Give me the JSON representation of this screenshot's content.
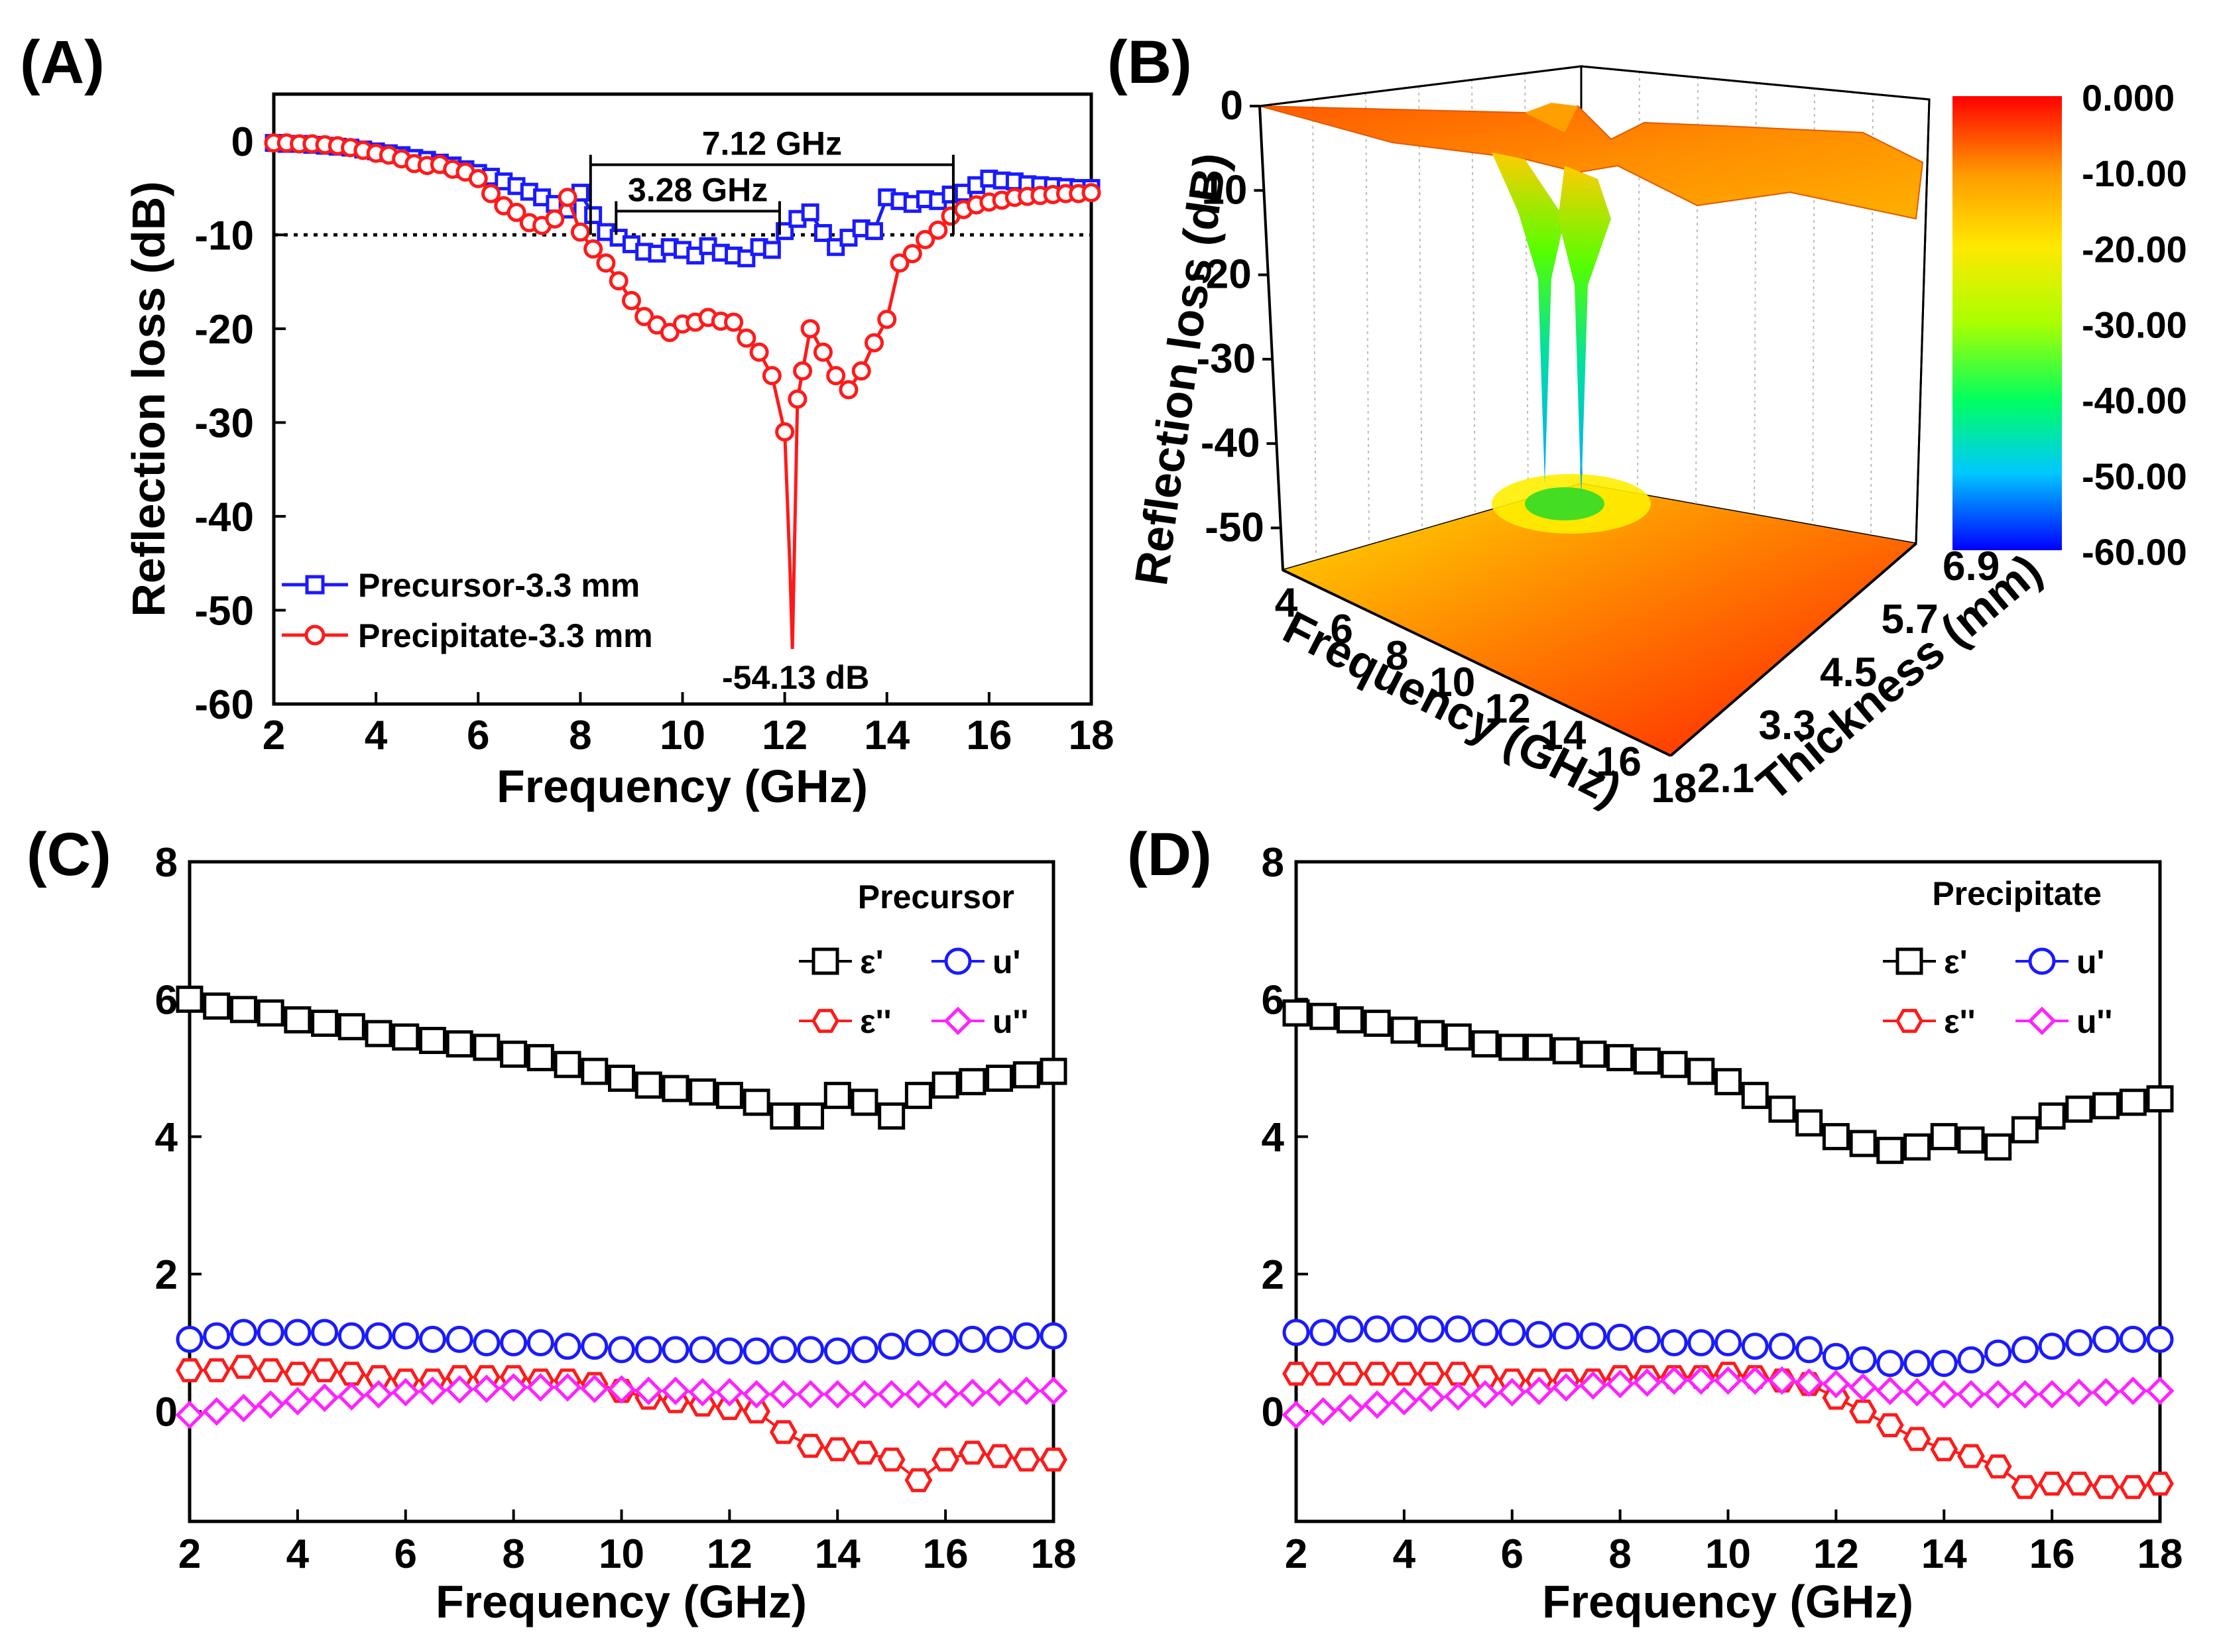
{
  "panels": {
    "A": {
      "label": "(A)"
    },
    "B": {
      "label": "(B)"
    },
    "C": {
      "label": "(C)"
    },
    "D": {
      "label": "(D)"
    }
  },
  "chart_data": [
    {
      "id": "A",
      "type": "line",
      "title": "",
      "xlabel": "Frequency (GHz)",
      "ylabel": "Reflection loss (dB)",
      "xlim": [
        2,
        18
      ],
      "ylim": [
        -60,
        5
      ],
      "xticks": [
        "2",
        "4",
        "6",
        "8",
        "10",
        "12",
        "14",
        "16",
        "18"
      ],
      "yticks": [
        "0",
        "-10",
        "-20",
        "-30",
        "-40",
        "-50",
        "-60"
      ],
      "reference_line": {
        "y": -10,
        "style": "dotted"
      },
      "series": [
        {
          "name": "Precursor-3.3 mm",
          "color": "#1a1aff",
          "marker": "square",
          "x": [
            2,
            2.25,
            2.5,
            2.75,
            3,
            3.25,
            3.5,
            3.75,
            4,
            4.25,
            4.5,
            4.75,
            5,
            5.25,
            5.5,
            5.75,
            6,
            6.25,
            6.5,
            6.75,
            7,
            7.25,
            7.5,
            7.75,
            8,
            8.25,
            8.5,
            8.75,
            9,
            9.25,
            9.5,
            9.75,
            10,
            10.25,
            10.5,
            10.75,
            11,
            11.25,
            11.5,
            11.75,
            12,
            12.25,
            12.5,
            12.75,
            13,
            13.25,
            13.5,
            13.75,
            14,
            14.25,
            14.5,
            14.75,
            15,
            15.25,
            15.5,
            15.75,
            16,
            16.25,
            16.5,
            16.75,
            17,
            17.25,
            17.5,
            17.75,
            18
          ],
          "values": [
            -0.2,
            -0.3,
            -0.3,
            -0.4,
            -0.5,
            -0.6,
            -0.7,
            -0.9,
            -1.1,
            -1.3,
            -1.5,
            -1.8,
            -2.0,
            -2.3,
            -2.6,
            -3.0,
            -3.4,
            -3.8,
            -4.3,
            -4.8,
            -5.4,
            -6.0,
            -6.7,
            -7.3,
            -5.5,
            -7.9,
            -9.7,
            -10.3,
            -11.0,
            -11.8,
            -12.0,
            -11.3,
            -11.6,
            -12.2,
            -11.2,
            -11.9,
            -12.2,
            -12.5,
            -11.3,
            -11.6,
            -9.6,
            -8.3,
            -7.6,
            -9.8,
            -11.3,
            -10.3,
            -9.3,
            -9.6,
            -6.0,
            -6.4,
            -6.7,
            -6.2,
            -6.4,
            -5.7,
            -5.5,
            -4.7,
            -4.0,
            -4.2,
            -4.3,
            -4.6,
            -4.7,
            -4.8,
            -4.9,
            -5.0,
            -5.0
          ]
        },
        {
          "name": "Precipitate-3.3 mm",
          "color": "#ff1a1a",
          "marker": "circle",
          "x": [
            2,
            2.25,
            2.5,
            2.75,
            3,
            3.25,
            3.5,
            3.75,
            4,
            4.25,
            4.5,
            4.75,
            5,
            5.25,
            5.5,
            5.75,
            6,
            6.25,
            6.5,
            6.75,
            7,
            7.25,
            7.5,
            7.75,
            8,
            8.25,
            8.5,
            8.75,
            9,
            9.25,
            9.5,
            9.75,
            10,
            10.25,
            10.5,
            10.75,
            11,
            11.25,
            11.5,
            11.75,
            12,
            12.1,
            12.15,
            12.25,
            12.35,
            12.5,
            12.75,
            13,
            13.25,
            13.5,
            13.75,
            14,
            14.25,
            14.5,
            14.75,
            15,
            15.25,
            15.5,
            15.75,
            16,
            16.25,
            16.5,
            16.75,
            17,
            17.25,
            17.5,
            17.75,
            18
          ],
          "values": [
            -0.2,
            -0.2,
            -0.3,
            -0.3,
            -0.4,
            -0.5,
            -0.7,
            -1.0,
            -1.3,
            -1.5,
            -1.9,
            -2.4,
            -2.6,
            -2.5,
            -3.0,
            -3.3,
            -4.0,
            -5.6,
            -6.9,
            -7.6,
            -8.7,
            -9.0,
            -8.3,
            -6.0,
            -9.7,
            -11.5,
            -13.0,
            -14.9,
            -17.0,
            -18.7,
            -19.6,
            -20.4,
            -19.5,
            -19.3,
            -18.8,
            -19.2,
            -19.3,
            -21.0,
            -22.5,
            -25.0,
            -31.0,
            -45.0,
            -54.13,
            -27.5,
            -24.5,
            -20.0,
            -22.5,
            -25.0,
            -26.5,
            -24.5,
            -21.5,
            -19.0,
            -13.0,
            -12.0,
            -10.5,
            -9.5,
            -8.0,
            -7.3,
            -6.8,
            -6.5,
            -6.3,
            -6.0,
            -5.9,
            -5.8,
            -5.7,
            -5.6,
            -5.6,
            -5.5
          ]
        }
      ],
      "annotations": [
        {
          "text": "7.12 GHz",
          "x_start": 8.2,
          "x_end": 15.3,
          "y": 0.3
        },
        {
          "text": "3.28 GHz",
          "x_start": 8.7,
          "x_end": 11.9,
          "y": -5
        },
        {
          "text": "-54.13 dB",
          "x": 12.15,
          "y": -54.13
        }
      ],
      "legend": [
        "Precursor-3.3 mm",
        "Precipitate-3.3 mm"
      ],
      "legend_position": "bottom-left"
    },
    {
      "id": "B",
      "type": "surface3d",
      "title": "",
      "xlabel": "Frequency (GHz)",
      "ylabel": "Thickness (mm)",
      "zlabel": "Reflection loss (dB)",
      "xticks": [
        "4",
        "6",
        "8",
        "10",
        "12",
        "14",
        "16",
        "18"
      ],
      "yticks": [
        "2.1",
        "3.3",
        "4.5",
        "5.7",
        "6.9"
      ],
      "zticks": [
        "0",
        "-10",
        "-20",
        "-30",
        "-40",
        "-50"
      ],
      "zlim": [
        -55,
        0
      ],
      "minimum_peaks": [
        {
          "frequency": 11.5,
          "thickness": 3.3,
          "value": -47
        },
        {
          "frequency": 12.2,
          "thickness": 3.3,
          "value": -52
        }
      ],
      "colorbar": {
        "ticks": [
          "0.000",
          "-10.00",
          "-20.00",
          "-30.00",
          "-40.00",
          "-50.00",
          "-60.00"
        ],
        "range": [
          -60,
          0
        ],
        "colors": [
          "#0000ff",
          "#00c8ff",
          "#00ff60",
          "#aaff00",
          "#ffe800",
          "#ff9900",
          "#ff0000"
        ]
      }
    },
    {
      "id": "C",
      "type": "line",
      "title": "Precursor",
      "xlabel": "Frequency (GHz)",
      "ylabel": "",
      "xlim": [
        2,
        18
      ],
      "ylim": [
        -1.6,
        8
      ],
      "xticks": [
        "2",
        "4",
        "6",
        "8",
        "10",
        "12",
        "14",
        "16",
        "18"
      ],
      "yticks": [
        "0",
        "2",
        "4",
        "6",
        "8"
      ],
      "x": [
        2,
        2.5,
        3,
        3.5,
        4,
        4.5,
        5,
        5.5,
        6,
        6.5,
        7,
        7.5,
        8,
        8.5,
        9,
        9.5,
        10,
        10.5,
        11,
        11.5,
        12,
        12.5,
        13,
        13.5,
        14,
        14.5,
        15,
        15.5,
        16,
        16.5,
        17,
        17.5,
        18
      ],
      "series": [
        {
          "name": "ε'",
          "color": "#000000",
          "marker": "square",
          "values": [
            6.0,
            5.9,
            5.85,
            5.8,
            5.7,
            5.65,
            5.6,
            5.5,
            5.45,
            5.4,
            5.35,
            5.3,
            5.2,
            5.15,
            5.05,
            4.95,
            4.85,
            4.75,
            4.7,
            4.65,
            4.6,
            4.5,
            4.3,
            4.3,
            4.6,
            4.5,
            4.3,
            4.6,
            4.75,
            4.8,
            4.85,
            4.9,
            4.95
          ]
        },
        {
          "name": "u'",
          "color": "#1a1aff",
          "marker": "circle",
          "values": [
            1.05,
            1.1,
            1.15,
            1.15,
            1.15,
            1.15,
            1.1,
            1.1,
            1.1,
            1.05,
            1.05,
            1.0,
            1.0,
            1.0,
            0.95,
            0.95,
            0.9,
            0.9,
            0.9,
            0.9,
            0.88,
            0.88,
            0.9,
            0.9,
            0.88,
            0.9,
            0.95,
            1.0,
            1.0,
            1.05,
            1.05,
            1.1,
            1.1
          ]
        },
        {
          "name": "ε''",
          "color": "#ff1a1a",
          "marker": "hexagon",
          "values": [
            0.6,
            0.6,
            0.65,
            0.6,
            0.55,
            0.6,
            0.55,
            0.5,
            0.45,
            0.45,
            0.5,
            0.5,
            0.5,
            0.45,
            0.45,
            0.4,
            0.3,
            0.2,
            0.15,
            0.1,
            0.05,
            0.0,
            -0.3,
            -0.5,
            -0.55,
            -0.6,
            -0.7,
            -1.0,
            -0.7,
            -0.6,
            -0.65,
            -0.7,
            -0.7
          ]
        },
        {
          "name": "u''",
          "color": "#ff22ff",
          "marker": "diamond",
          "values": [
            -0.05,
            0.0,
            0.05,
            0.1,
            0.15,
            0.2,
            0.22,
            0.25,
            0.28,
            0.3,
            0.32,
            0.33,
            0.35,
            0.35,
            0.35,
            0.33,
            0.32,
            0.3,
            0.3,
            0.28,
            0.28,
            0.25,
            0.25,
            0.25,
            0.25,
            0.25,
            0.25,
            0.25,
            0.25,
            0.27,
            0.28,
            0.3,
            0.3
          ]
        }
      ],
      "legend": [
        "ε'",
        "u'",
        "ε''",
        "u''"
      ],
      "legend_position": "top-right"
    },
    {
      "id": "D",
      "type": "line",
      "title": "Precipitate",
      "xlabel": "Frequency (GHz)",
      "ylabel": "",
      "xlim": [
        2,
        18
      ],
      "ylim": [
        -1.6,
        8
      ],
      "xticks": [
        "2",
        "4",
        "6",
        "8",
        "10",
        "12",
        "14",
        "16",
        "18"
      ],
      "yticks": [
        "0",
        "2",
        "4",
        "6",
        "8"
      ],
      "x": [
        2,
        2.5,
        3,
        3.5,
        4,
        4.5,
        5,
        5.5,
        6,
        6.5,
        7,
        7.5,
        8,
        8.5,
        9,
        9.5,
        10,
        10.5,
        11,
        11.5,
        12,
        12.5,
        13,
        13.5,
        14,
        14.5,
        15,
        15.5,
        16,
        16.5,
        17,
        17.5,
        18
      ],
      "series": [
        {
          "name": "ε'",
          "color": "#000000",
          "marker": "square",
          "values": [
            5.8,
            5.75,
            5.7,
            5.65,
            5.55,
            5.5,
            5.45,
            5.35,
            5.3,
            5.3,
            5.25,
            5.2,
            5.15,
            5.1,
            5.05,
            4.95,
            4.8,
            4.6,
            4.4,
            4.2,
            4.0,
            3.9,
            3.8,
            3.85,
            4.0,
            3.95,
            3.85,
            4.1,
            4.3,
            4.4,
            4.45,
            4.5,
            4.55
          ]
        },
        {
          "name": "u'",
          "color": "#1a1aff",
          "marker": "circle",
          "values": [
            1.15,
            1.15,
            1.2,
            1.2,
            1.2,
            1.2,
            1.2,
            1.15,
            1.15,
            1.12,
            1.1,
            1.1,
            1.08,
            1.05,
            1.0,
            1.0,
            1.0,
            0.95,
            0.95,
            0.9,
            0.8,
            0.75,
            0.7,
            0.7,
            0.7,
            0.75,
            0.85,
            0.9,
            0.95,
            1.0,
            1.05,
            1.05,
            1.05
          ]
        },
        {
          "name": "ε''",
          "color": "#ff1a1a",
          "marker": "hexagon",
          "values": [
            0.55,
            0.55,
            0.55,
            0.55,
            0.55,
            0.55,
            0.55,
            0.5,
            0.45,
            0.45,
            0.45,
            0.45,
            0.5,
            0.5,
            0.5,
            0.5,
            0.55,
            0.5,
            0.45,
            0.4,
            0.2,
            0.0,
            -0.2,
            -0.4,
            -0.55,
            -0.65,
            -0.8,
            -1.1,
            -1.05,
            -1.05,
            -1.1,
            -1.1,
            -1.05
          ]
        },
        {
          "name": "u''",
          "color": "#ff22ff",
          "marker": "diamond",
          "values": [
            -0.05,
            0.0,
            0.05,
            0.1,
            0.15,
            0.2,
            0.22,
            0.25,
            0.28,
            0.3,
            0.35,
            0.38,
            0.4,
            0.42,
            0.45,
            0.45,
            0.45,
            0.45,
            0.45,
            0.42,
            0.4,
            0.35,
            0.3,
            0.28,
            0.25,
            0.25,
            0.25,
            0.25,
            0.25,
            0.27,
            0.28,
            0.3,
            0.3
          ]
        }
      ],
      "legend": [
        "ε'",
        "u'",
        "ε''",
        "u''"
      ],
      "legend_position": "top-right"
    }
  ]
}
